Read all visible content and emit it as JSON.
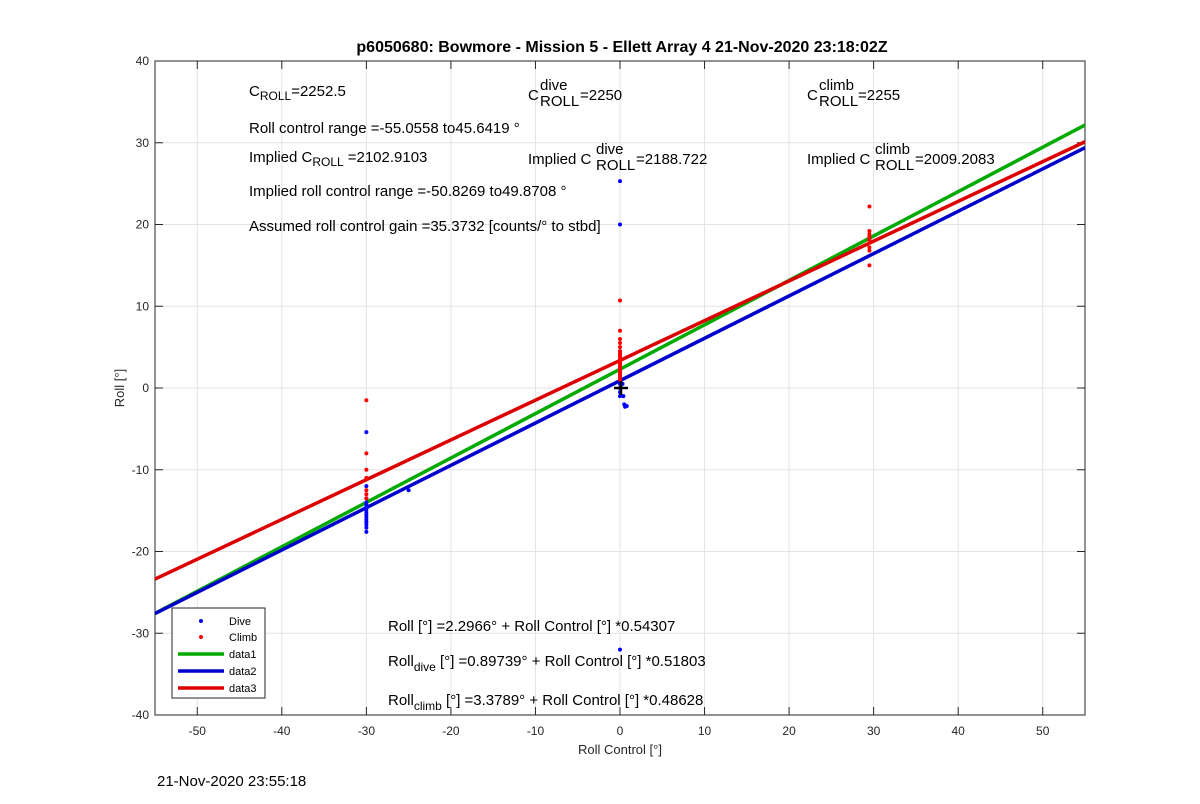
{
  "timestamp": "21-Nov-2020 23:55:18",
  "colors": {
    "dive": "#0000ff",
    "climb": "#ff0000",
    "data1": "#00aa00",
    "data2": "#0000cc",
    "data3": "#dd0000"
  },
  "annotations": {
    "c_roll_base": "C",
    "c_roll_sub": "ROLL",
    "c_roll_value": "=2252.5",
    "c_dive_sup": "dive",
    "c_dive_value": "=2250",
    "c_climb_sup": "climb",
    "c_climb_value": "=2255",
    "roll_range": "Roll control range =-55.0558 to45.6419 °",
    "implied_prefix": "Implied C",
    "implied_value": "=2102.9103",
    "implied_dive_value": "=2188.722",
    "implied_climb_value": "=2009.2083",
    "implied_range": "Implied roll control range =-50.8269 to49.8708 °",
    "gain": "Assumed roll control gain =35.3732 [counts/° to stbd]",
    "fit_all": "Roll [°] =2.2966° + Roll Control [°] *0.54307",
    "fit_dive_base": "Roll",
    "fit_dive_sub": "dive",
    "fit_dive_rest": " [°] =0.89739° + Roll Control [°] *0.51803",
    "fit_climb_base": "Roll",
    "fit_climb_sub": "climb",
    "fit_climb_rest": " [°] =3.3789° + Roll Control [°] *0.48628"
  },
  "chart_data": {
    "type": "scatter",
    "title": "p6050680: Bowmore - Mission 5 - Ellett Array 4 21-Nov-2020 23:18:02Z",
    "xlabel": "Roll Control [°]",
    "ylabel": "Roll [°]",
    "xlim": [
      -55,
      55
    ],
    "ylim": [
      -40,
      40
    ],
    "xticks": [
      -50,
      -40,
      -30,
      -20,
      -10,
      0,
      10,
      20,
      30,
      40,
      50
    ],
    "yticks": [
      -40,
      -30,
      -20,
      -10,
      0,
      10,
      20,
      30,
      40
    ],
    "grid": true,
    "legend_location": "bottom-left",
    "series": [
      {
        "name": "Dive",
        "kind": "points",
        "color": "#0000ff",
        "x": [
          -30,
          -30,
          -30,
          -30,
          -30,
          -30,
          -30,
          -30,
          -30,
          -30,
          -30,
          -30,
          -30,
          -30,
          -30,
          -25,
          0,
          0,
          0,
          0,
          0,
          0,
          0,
          0,
          0,
          0,
          0,
          0,
          0,
          0,
          0.3,
          0.4,
          0.5,
          0.6,
          0.8,
          0
        ],
        "y": [
          -5.4,
          -13.5,
          -14,
          -14.3,
          -14.6,
          -14.9,
          -15.2,
          -15.5,
          -15.8,
          -16.1,
          -16.4,
          -16.7,
          -17.1,
          -17.6,
          -12,
          -12.5,
          25.3,
          20,
          4.5,
          3,
          2,
          1.5,
          1,
          0.5,
          0,
          -0.5,
          -1,
          2.5,
          1.8,
          1.2,
          0.5,
          -1,
          -2,
          -2.3,
          -2.2,
          -32
        ]
      },
      {
        "name": "Climb",
        "kind": "points",
        "color": "#ff0000",
        "x": [
          -30,
          -30,
          -30,
          -30,
          -30,
          -30,
          -30,
          0,
          0,
          0,
          0,
          0,
          0,
          0,
          0,
          0,
          0,
          0,
          0,
          0,
          0,
          0,
          0,
          0,
          0,
          0,
          0,
          29.5,
          29.5,
          29.5,
          29.5,
          29.5,
          29.5,
          29.5,
          29.5,
          29.5
        ],
        "y": [
          -1.5,
          -8,
          -10,
          -11,
          -12.5,
          -13,
          -13.5,
          10.7,
          7,
          6,
          5.5,
          5,
          4.5,
          4.2,
          4,
          3.8,
          3.5,
          3.2,
          3,
          2.8,
          2.5,
          2.2,
          2,
          1.8,
          1.5,
          1.2,
          1,
          22.2,
          19.2,
          18.8,
          18.2,
          17.8,
          17.2,
          16.8,
          15,
          18.5
        ]
      },
      {
        "name": "data1",
        "kind": "line",
        "color": "#00aa00",
        "x": [
          -55,
          55
        ],
        "y": [
          -27.57,
          32.17
        ]
      },
      {
        "name": "data2",
        "kind": "line",
        "color": "#0000cc",
        "x": [
          -55,
          55
        ],
        "y": [
          -27.59,
          29.39
        ]
      },
      {
        "name": "data3",
        "kind": "line",
        "color": "#dd0000",
        "x": [
          -55,
          55
        ],
        "y": [
          -23.37,
          30.12
        ]
      }
    ]
  }
}
